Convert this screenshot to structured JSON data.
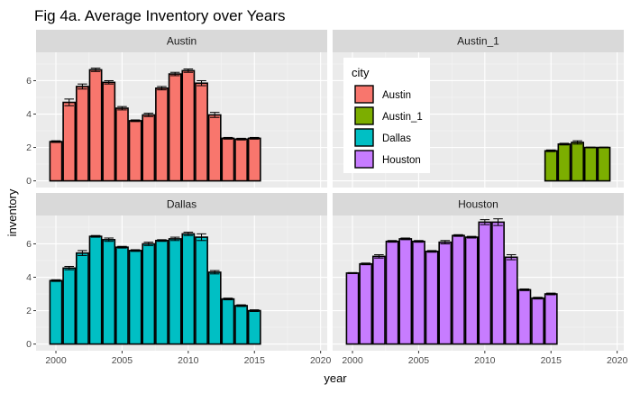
{
  "chart_data": {
    "type": "bar",
    "title": "Fig 4a. Average Inventory over Years",
    "xlabel": "year",
    "ylabel": "inventory",
    "xlim": [
      1998.5,
      2020.5
    ],
    "ylim": [
      -0.4,
      7.7
    ],
    "x_ticks": [
      2000,
      2005,
      2010,
      2015,
      2020
    ],
    "y_ticks": [
      0,
      2,
      4,
      6
    ],
    "grid": true,
    "facet_layout": "2x2",
    "legend": {
      "title": "city",
      "placement": "top-right panel",
      "entries": [
        {
          "name": "Austin",
          "color": "#F8766D"
        },
        {
          "name": "Austin_1",
          "color": "#7CAE00"
        },
        {
          "name": "Dallas",
          "color": "#00BFC4"
        },
        {
          "name": "Houston",
          "color": "#C77CFF"
        }
      ]
    },
    "panels": [
      {
        "name": "Austin",
        "color": "#F8766D",
        "x": [
          2000,
          2001,
          2002,
          2003,
          2004,
          2005,
          2006,
          2007,
          2008,
          2009,
          2010,
          2011,
          2012,
          2013,
          2014,
          2015
        ],
        "values": [
          2.35,
          4.7,
          5.65,
          6.65,
          5.9,
          4.35,
          3.6,
          3.95,
          5.55,
          6.4,
          6.6,
          5.85,
          3.95,
          2.55,
          2.5,
          2.55
        ],
        "errors": [
          0.05,
          0.2,
          0.15,
          0.1,
          0.1,
          0.1,
          0.05,
          0.1,
          0.1,
          0.1,
          0.1,
          0.15,
          0.15,
          0.05,
          0.05,
          0.05
        ]
      },
      {
        "name": "Austin_1",
        "color": "#7CAE00",
        "x": [
          2015,
          2016,
          2017,
          2018,
          2019
        ],
        "values": [
          1.8,
          2.2,
          2.3,
          2.0,
          2.0
        ],
        "errors": [
          0.05,
          0.05,
          0.1,
          0.02,
          0.02
        ]
      },
      {
        "name": "Dallas",
        "color": "#00BFC4",
        "x": [
          2000,
          2001,
          2002,
          2003,
          2004,
          2005,
          2006,
          2007,
          2008,
          2009,
          2010,
          2011,
          2012,
          2013,
          2014,
          2015
        ],
        "values": [
          3.8,
          4.55,
          5.45,
          6.45,
          6.25,
          5.8,
          5.6,
          6.0,
          6.2,
          6.3,
          6.6,
          6.4,
          4.3,
          2.7,
          2.3,
          2.0
        ],
        "errors": [
          0.05,
          0.1,
          0.15,
          0.05,
          0.1,
          0.05,
          0.05,
          0.1,
          0.05,
          0.1,
          0.1,
          0.2,
          0.1,
          0.05,
          0.05,
          0.05
        ]
      },
      {
        "name": "Houston",
        "color": "#C77CFF",
        "x": [
          2000,
          2001,
          2002,
          2003,
          2004,
          2005,
          2006,
          2007,
          2008,
          2009,
          2010,
          2011,
          2012,
          2013,
          2014,
          2015
        ],
        "values": [
          4.25,
          4.8,
          5.25,
          6.15,
          6.3,
          6.15,
          5.55,
          6.1,
          6.5,
          6.4,
          7.3,
          7.3,
          5.2,
          3.25,
          2.75,
          3.0
        ],
        "errors": [
          0.03,
          0.05,
          0.1,
          0.05,
          0.05,
          0.05,
          0.05,
          0.1,
          0.05,
          0.05,
          0.15,
          0.2,
          0.15,
          0.05,
          0.05,
          0.05
        ]
      }
    ]
  }
}
